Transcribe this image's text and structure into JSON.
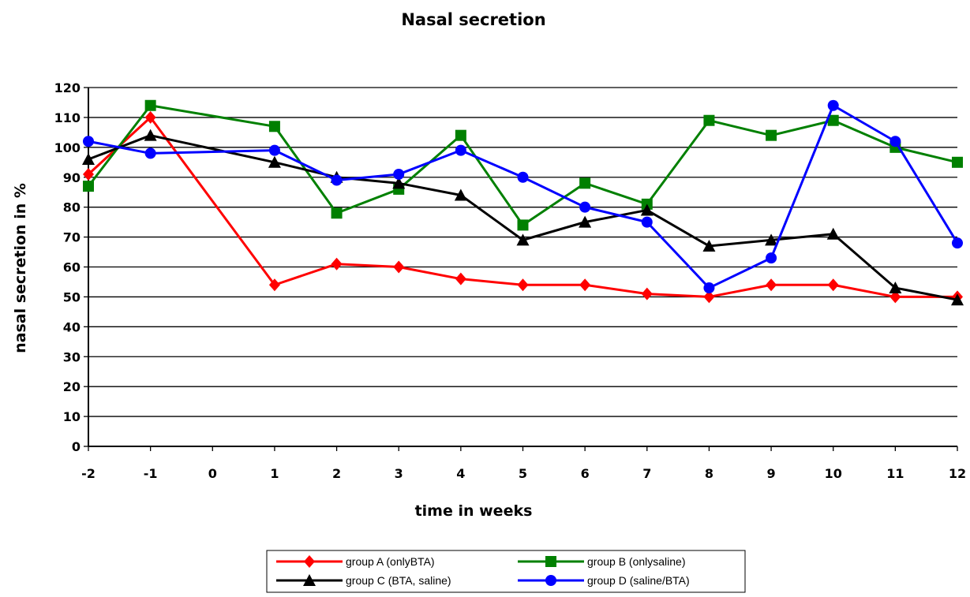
{
  "chart_data": {
    "type": "line",
    "title": "Nasal secretion",
    "xlabel": "time in weeks",
    "ylabel": "nasal secretion in %",
    "x": [
      -2,
      -1,
      0,
      1,
      2,
      3,
      4,
      5,
      6,
      7,
      8,
      9,
      10,
      11,
      12
    ],
    "x_tick_labels": [
      "-2",
      "-1",
      "0",
      "1",
      "2",
      "3",
      "4",
      "5",
      "6",
      "7",
      "8",
      "9",
      "10",
      "11",
      "12"
    ],
    "ylim": [
      0,
      120
    ],
    "y_ticks": [
      0,
      10,
      20,
      30,
      40,
      50,
      60,
      70,
      80,
      90,
      100,
      110,
      120
    ],
    "grid": "horizontal",
    "legend_position": "bottom",
    "series": [
      {
        "name": "group A (onlyBTA)",
        "color": "#ff0000",
        "marker": "diamond",
        "points": [
          [
            -2,
            91
          ],
          [
            -1,
            110
          ],
          [
            1,
            54
          ],
          [
            2,
            61
          ],
          [
            3,
            60
          ],
          [
            4,
            56
          ],
          [
            5,
            54
          ],
          [
            6,
            54
          ],
          [
            7,
            51
          ],
          [
            8,
            50
          ],
          [
            9,
            54
          ],
          [
            10,
            54
          ],
          [
            11,
            50
          ],
          [
            12,
            50
          ]
        ]
      },
      {
        "name": "group B (onlysaline)",
        "color": "#008000",
        "marker": "square",
        "points": [
          [
            -2,
            87
          ],
          [
            -1,
            114
          ],
          [
            1,
            107
          ],
          [
            2,
            78
          ],
          [
            3,
            86
          ],
          [
            4,
            104
          ],
          [
            5,
            74
          ],
          [
            6,
            88
          ],
          [
            7,
            81
          ],
          [
            8,
            109
          ],
          [
            9,
            104
          ],
          [
            10,
            109
          ],
          [
            11,
            100
          ],
          [
            12,
            95
          ]
        ]
      },
      {
        "name": "group C (BTA, saline)",
        "color": "#000000",
        "marker": "triangle",
        "points": [
          [
            -2,
            96
          ],
          [
            -1,
            104
          ],
          [
            1,
            95
          ],
          [
            2,
            90
          ],
          [
            3,
            88
          ],
          [
            4,
            84
          ],
          [
            5,
            69
          ],
          [
            6,
            75
          ],
          [
            7,
            79
          ],
          [
            8,
            67
          ],
          [
            9,
            69
          ],
          [
            10,
            71
          ],
          [
            11,
            53
          ],
          [
            12,
            49
          ]
        ]
      },
      {
        "name": "group D (saline/BTA)",
        "color": "#0000ff",
        "marker": "circle",
        "points": [
          [
            -2,
            102
          ],
          [
            -1,
            98
          ],
          [
            1,
            99
          ],
          [
            2,
            89
          ],
          [
            3,
            91
          ],
          [
            4,
            99
          ],
          [
            5,
            90
          ],
          [
            6,
            80
          ],
          [
            7,
            75
          ],
          [
            8,
            53
          ],
          [
            9,
            63
          ],
          [
            10,
            114
          ],
          [
            11,
            102
          ],
          [
            12,
            68
          ]
        ]
      }
    ]
  }
}
